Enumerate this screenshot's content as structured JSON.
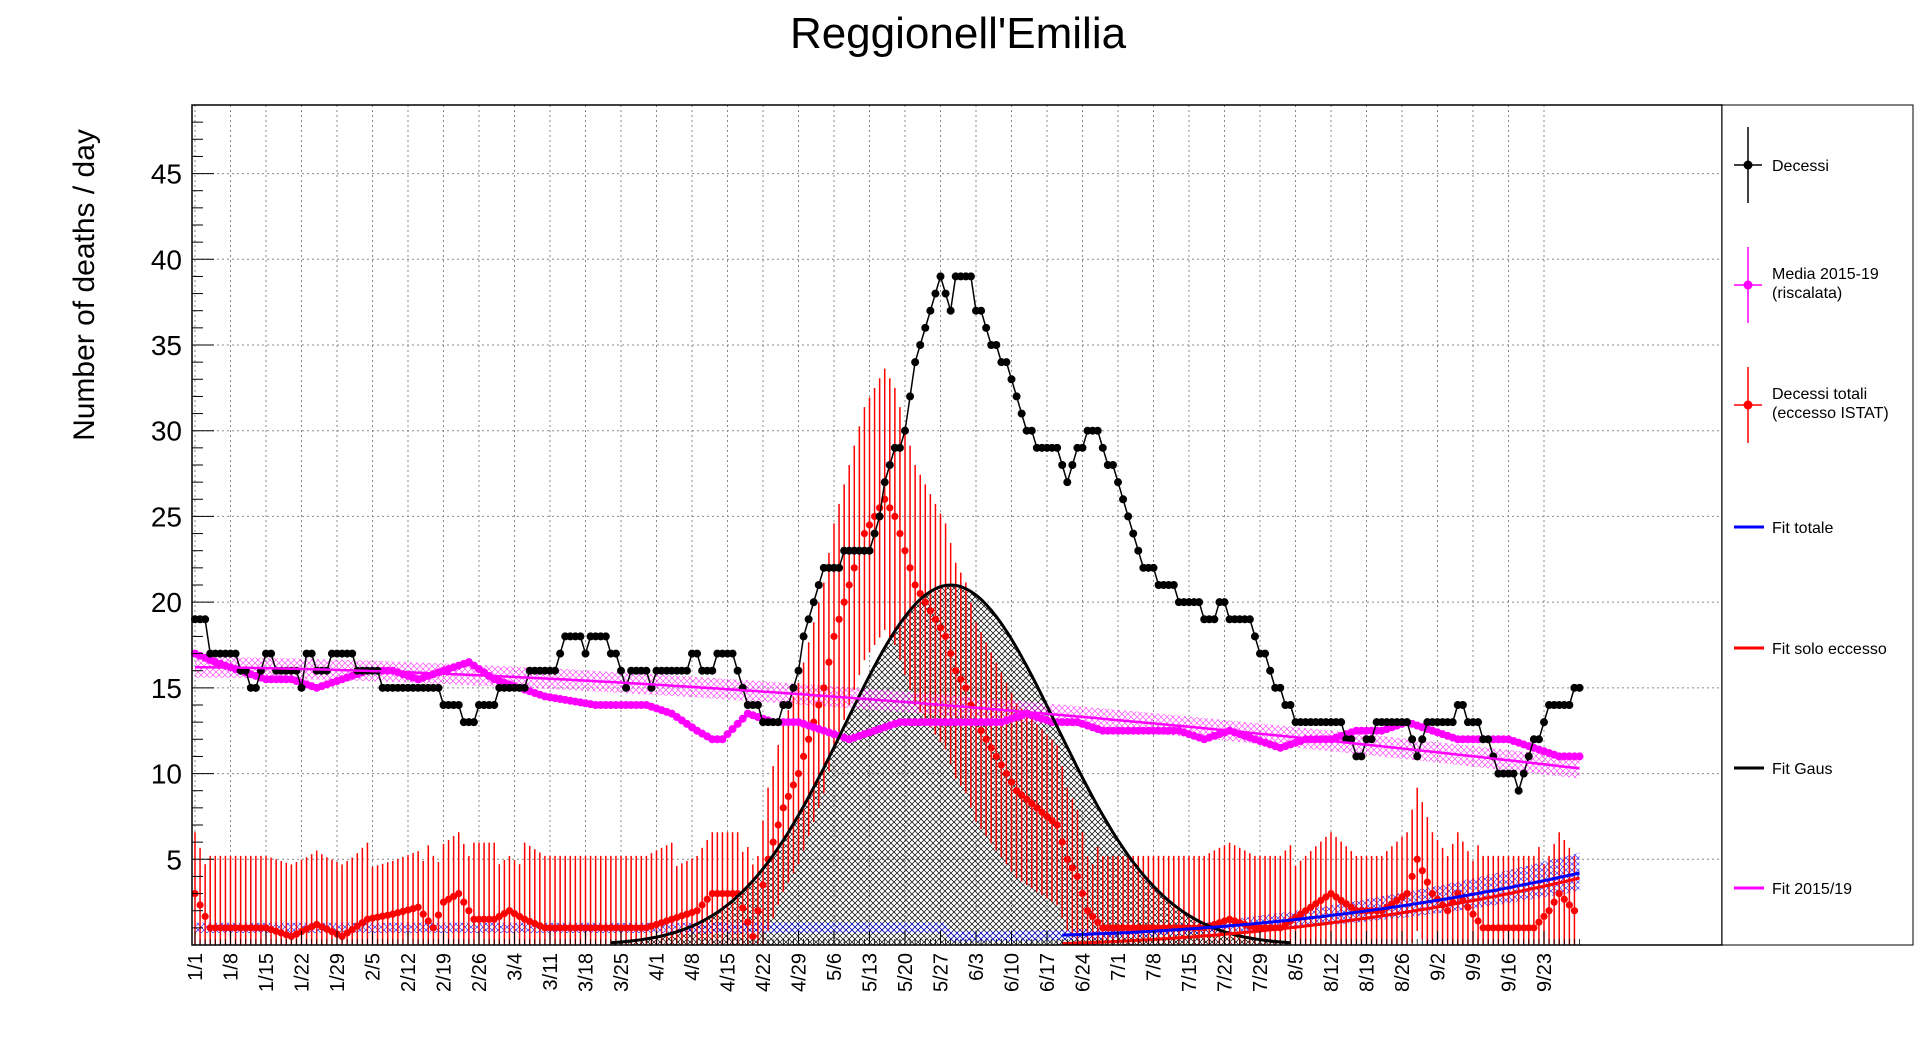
{
  "chart_data": {
    "type": "line",
    "title": "Reggionell'Emilia",
    "xlabel": "",
    "ylabel": "Number of deaths / day",
    "ylim": [
      0,
      49
    ],
    "yticks": [
      5,
      10,
      15,
      20,
      25,
      30,
      35,
      40,
      45
    ],
    "grid": true,
    "legend_position": "right",
    "x_tick_labels": [
      "1/1",
      "1/8",
      "1/15",
      "1/22",
      "1/29",
      "2/5",
      "2/12",
      "2/19",
      "2/26",
      "3/4",
      "3/11",
      "3/18",
      "3/25",
      "4/1",
      "4/8",
      "4/15",
      "4/22",
      "4/29",
      "5/6",
      "5/13",
      "5/20",
      "5/27",
      "6/3",
      "6/10",
      "6/17",
      "6/24",
      "7/1",
      "7/8",
      "7/15",
      "7/22",
      "7/29",
      "8/5",
      "8/12",
      "8/19",
      "8/26",
      "9/2",
      "9/9",
      "9/16",
      "9/23"
    ],
    "x_day_start": 1,
    "x_day_end": 274,
    "legend": [
      {
        "label": "Decessi",
        "color": "#000000",
        "style": "marker"
      },
      {
        "label": "Media 2015-19\n(riscalata)",
        "color": "#ff00ff",
        "style": "marker"
      },
      {
        "label": "Decessi totali\n(eccesso ISTAT)",
        "color": "#ff0000",
        "style": "marker"
      },
      {
        "label": "Fit totale",
        "color": "#0000ff",
        "style": "line"
      },
      {
        "label": "Fit solo eccesso",
        "color": "#ff0000",
        "style": "line"
      },
      {
        "label": "Fit Gaus",
        "color": "#000000",
        "style": "line"
      },
      {
        "label": "Fit 2015/19",
        "color": "#ff00ff",
        "style": "line"
      }
    ],
    "series": [
      {
        "name": "Decessi",
        "color": "#000000",
        "keypoints": [
          [
            1,
            19
          ],
          [
            3,
            19
          ],
          [
            4,
            17
          ],
          [
            8,
            17
          ],
          [
            10,
            16
          ],
          [
            13,
            15
          ],
          [
            15,
            17
          ],
          [
            18,
            16
          ],
          [
            21,
            16
          ],
          [
            22,
            15
          ],
          [
            23,
            17
          ],
          [
            25,
            16
          ],
          [
            27,
            16
          ],
          [
            29,
            17
          ],
          [
            31,
            17
          ],
          [
            33,
            16
          ],
          [
            36,
            16
          ],
          [
            38,
            15
          ],
          [
            40,
            15
          ],
          [
            44,
            15
          ],
          [
            48,
            15
          ],
          [
            50,
            14
          ],
          [
            53,
            14
          ],
          [
            54,
            13
          ],
          [
            56,
            13
          ],
          [
            57,
            14
          ],
          [
            60,
            14
          ],
          [
            62,
            15
          ],
          [
            64,
            15
          ],
          [
            66,
            15
          ],
          [
            68,
            16
          ],
          [
            70,
            16
          ],
          [
            72,
            16
          ],
          [
            74,
            18
          ],
          [
            77,
            18
          ],
          [
            78,
            17
          ],
          [
            79,
            18
          ],
          [
            81,
            18
          ],
          [
            83,
            17
          ],
          [
            85,
            16
          ],
          [
            86,
            15
          ],
          [
            88,
            16
          ],
          [
            90,
            16
          ],
          [
            91,
            15
          ],
          [
            93,
            16
          ],
          [
            95,
            16
          ],
          [
            98,
            16
          ],
          [
            100,
            17
          ],
          [
            101,
            16
          ],
          [
            103,
            16
          ],
          [
            104,
            17
          ],
          [
            106,
            17
          ],
          [
            108,
            16
          ],
          [
            110,
            14
          ],
          [
            112,
            14
          ],
          [
            113,
            13
          ],
          [
            116,
            13
          ],
          [
            118,
            14
          ],
          [
            120,
            16
          ],
          [
            122,
            19
          ],
          [
            123,
            20
          ],
          [
            124,
            21
          ],
          [
            126,
            22
          ],
          [
            128,
            22
          ],
          [
            130,
            23
          ],
          [
            134,
            23
          ],
          [
            136,
            25
          ],
          [
            138,
            28
          ],
          [
            140,
            29
          ],
          [
            141,
            30
          ],
          [
            142,
            32
          ],
          [
            144,
            35
          ],
          [
            145,
            36
          ],
          [
            146,
            37
          ],
          [
            147,
            38
          ],
          [
            148,
            39
          ],
          [
            149,
            38
          ],
          [
            150,
            37
          ],
          [
            151,
            39
          ],
          [
            154,
            39
          ],
          [
            155,
            37
          ],
          [
            157,
            36
          ],
          [
            158,
            35
          ],
          [
            160,
            34
          ],
          [
            162,
            33
          ],
          [
            163,
            32
          ],
          [
            165,
            30
          ],
          [
            167,
            29
          ],
          [
            170,
            29
          ],
          [
            172,
            28
          ],
          [
            173,
            27
          ],
          [
            174,
            28
          ],
          [
            176,
            29
          ],
          [
            177,
            30
          ],
          [
            179,
            30
          ],
          [
            180,
            29
          ],
          [
            181,
            28
          ],
          [
            183,
            27
          ],
          [
            184,
            26
          ],
          [
            185,
            25
          ],
          [
            187,
            23
          ],
          [
            188,
            22
          ],
          [
            190,
            22
          ],
          [
            191,
            21
          ],
          [
            193,
            21
          ],
          [
            196,
            20
          ],
          [
            199,
            20
          ],
          [
            200,
            19
          ],
          [
            202,
            19
          ],
          [
            204,
            20
          ],
          [
            205,
            19
          ],
          [
            207,
            19
          ],
          [
            209,
            19
          ],
          [
            211,
            17
          ],
          [
            213,
            16
          ],
          [
            214,
            15
          ],
          [
            216,
            14
          ],
          [
            218,
            13
          ],
          [
            221,
            13
          ],
          [
            223,
            13
          ],
          [
            226,
            13
          ],
          [
            228,
            12
          ],
          [
            231,
            11
          ],
          [
            233,
            12
          ],
          [
            235,
            13
          ],
          [
            240,
            13
          ],
          [
            242,
            11
          ],
          [
            243,
            12
          ],
          [
            244,
            13
          ],
          [
            249,
            13
          ],
          [
            250,
            14
          ],
          [
            253,
            13
          ],
          [
            255,
            12
          ],
          [
            257,
            11
          ],
          [
            258,
            10
          ],
          [
            260,
            10
          ],
          [
            262,
            9
          ],
          [
            264,
            11
          ],
          [
            266,
            12
          ],
          [
            268,
            14
          ],
          [
            270,
            14
          ],
          [
            272,
            14
          ],
          [
            274,
            15
          ]
        ]
      },
      {
        "name": "Media 2015-19 (riscalata)",
        "color": "#ff00ff",
        "keypoints": [
          [
            1,
            17
          ],
          [
            5,
            16.5
          ],
          [
            10,
            16
          ],
          [
            15,
            15.5
          ],
          [
            20,
            15.5
          ],
          [
            25,
            15
          ],
          [
            30,
            15.5
          ],
          [
            35,
            16
          ],
          [
            40,
            16
          ],
          [
            45,
            15.5
          ],
          [
            50,
            16
          ],
          [
            55,
            16.5
          ],
          [
            60,
            15.5
          ],
          [
            70,
            14.5
          ],
          [
            80,
            14
          ],
          [
            90,
            14
          ],
          [
            95,
            13.5
          ],
          [
            100,
            12.5
          ],
          [
            103,
            12
          ],
          [
            105,
            12
          ],
          [
            110,
            13.5
          ],
          [
            115,
            13
          ],
          [
            120,
            13
          ],
          [
            125,
            12.5
          ],
          [
            130,
            12
          ],
          [
            135,
            12.5
          ],
          [
            140,
            13
          ],
          [
            145,
            13
          ],
          [
            150,
            13
          ],
          [
            155,
            13
          ],
          [
            160,
            13
          ],
          [
            165,
            13.5
          ],
          [
            170,
            13
          ],
          [
            175,
            13
          ],
          [
            180,
            12.5
          ],
          [
            185,
            12.5
          ],
          [
            190,
            12.5
          ],
          [
            195,
            12.5
          ],
          [
            200,
            12
          ],
          [
            205,
            12.5
          ],
          [
            210,
            12
          ],
          [
            215,
            11.5
          ],
          [
            220,
            12
          ],
          [
            225,
            12
          ],
          [
            230,
            12.5
          ],
          [
            235,
            12.5
          ],
          [
            240,
            13
          ],
          [
            245,
            12.5
          ],
          [
            250,
            12
          ],
          [
            255,
            12
          ],
          [
            260,
            12
          ],
          [
            265,
            11.5
          ],
          [
            270,
            11
          ],
          [
            274,
            11
          ]
        ]
      },
      {
        "name": "Decessi totali (eccesso ISTAT)",
        "color": "#ff0000",
        "keypoints": [
          [
            1,
            3
          ],
          [
            4,
            1
          ],
          [
            10,
            1
          ],
          [
            15,
            1
          ],
          [
            20,
            0.5
          ],
          [
            25,
            1.2
          ],
          [
            30,
            0.5
          ],
          [
            35,
            1.5
          ],
          [
            40,
            1.8
          ],
          [
            45,
            2.2
          ],
          [
            48,
            1
          ],
          [
            50,
            2.5
          ],
          [
            53,
            3
          ],
          [
            56,
            1.5
          ],
          [
            60,
            1.5
          ],
          [
            63,
            2
          ],
          [
            66,
            1.5
          ],
          [
            70,
            1
          ],
          [
            75,
            1
          ],
          [
            80,
            1
          ],
          [
            85,
            1
          ],
          [
            90,
            1
          ],
          [
            95,
            1.5
          ],
          [
            100,
            2
          ],
          [
            103,
            3
          ],
          [
            106,
            3
          ],
          [
            108,
            3
          ],
          [
            111,
            0.5
          ],
          [
            114,
            5
          ],
          [
            117,
            8
          ],
          [
            120,
            10
          ],
          [
            122,
            12
          ],
          [
            125,
            15
          ],
          [
            127,
            18
          ],
          [
            129,
            20
          ],
          [
            131,
            22
          ],
          [
            133,
            24
          ],
          [
            135,
            25
          ],
          [
            137,
            26
          ],
          [
            139,
            25
          ],
          [
            141,
            23
          ],
          [
            143,
            21
          ],
          [
            145,
            20
          ],
          [
            147,
            19
          ],
          [
            149,
            18
          ],
          [
            151,
            16
          ],
          [
            153,
            15
          ],
          [
            155,
            13
          ],
          [
            157,
            12
          ],
          [
            159,
            11
          ],
          [
            161,
            10
          ],
          [
            163,
            9
          ],
          [
            165,
            8.5
          ],
          [
            167,
            8
          ],
          [
            169,
            7.5
          ],
          [
            171,
            7
          ],
          [
            173,
            5
          ],
          [
            175,
            4
          ],
          [
            177,
            2
          ],
          [
            180,
            1
          ],
          [
            185,
            1
          ],
          [
            190,
            1
          ],
          [
            195,
            1
          ],
          [
            200,
            1
          ],
          [
            205,
            1.5
          ],
          [
            210,
            1
          ],
          [
            215,
            1
          ],
          [
            220,
            2
          ],
          [
            225,
            3
          ],
          [
            230,
            2
          ],
          [
            235,
            2
          ],
          [
            240,
            3
          ],
          [
            242,
            5
          ],
          [
            245,
            3
          ],
          [
            248,
            2
          ],
          [
            250,
            3
          ],
          [
            255,
            1
          ],
          [
            260,
            1
          ],
          [
            265,
            1
          ],
          [
            268,
            2
          ],
          [
            270,
            3
          ],
          [
            273,
            2
          ]
        ]
      }
    ],
    "fits": {
      "gaus": {
        "name": "Fit Gaus",
        "color": "#000000",
        "amplitude": 21,
        "mean": 150,
        "sigma": 21
      },
      "fit_2015_19": {
        "name": "Fit 2015/19",
        "color": "#ff00ff",
        "y_start": 16.2,
        "y_end": 10.3
      },
      "fit_totale": {
        "name": "Fit totale",
        "color": "#0000ff",
        "base": 0.5,
        "end": 4.2
      },
      "fit_solo_eccesso": {
        "name": "Fit solo eccesso",
        "color": "#ff0000",
        "base": 0.0,
        "end": 3.9
      }
    }
  }
}
